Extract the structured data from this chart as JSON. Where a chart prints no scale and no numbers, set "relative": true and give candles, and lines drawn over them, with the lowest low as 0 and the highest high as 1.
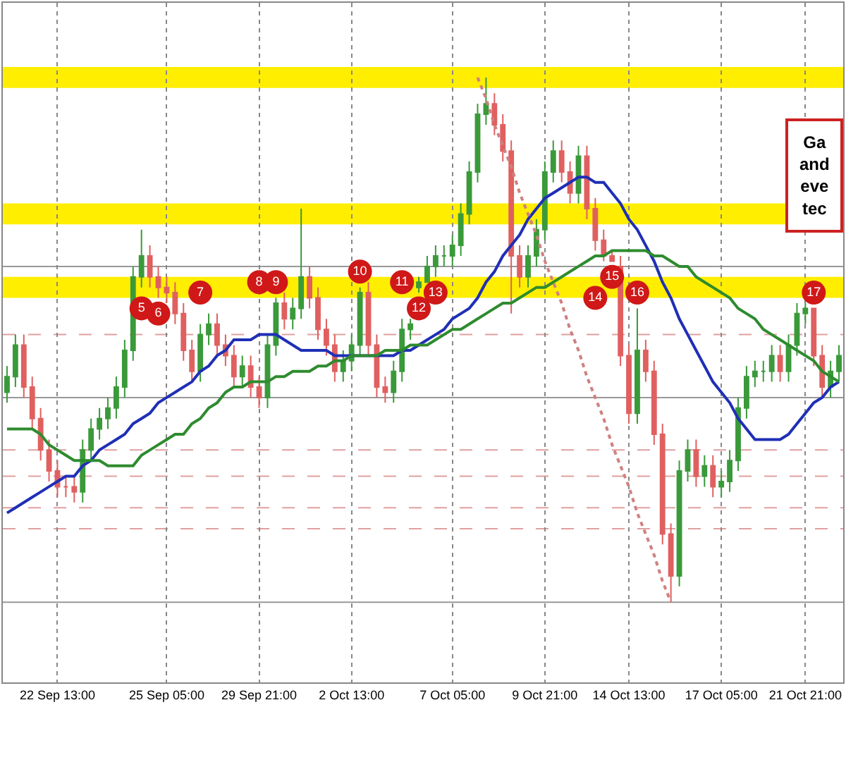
{
  "chart_data": {
    "type": "candlestick",
    "relative": true,
    "categories": [
      null,
      null,
      null,
      null,
      null,
      null,
      "22 Sep 13:00",
      null,
      null,
      null,
      null,
      null,
      null,
      null,
      null,
      null,
      null,
      null,
      null,
      "25 Sep 05:00",
      null,
      null,
      null,
      null,
      null,
      null,
      null,
      null,
      null,
      null,
      "29 Sep 21:00",
      null,
      null,
      null,
      null,
      null,
      null,
      null,
      null,
      null,
      null,
      "2 Oct 13:00",
      null,
      null,
      null,
      null,
      null,
      null,
      null,
      null,
      null,
      null,
      null,
      "7 Oct 05:00",
      null,
      null,
      null,
      null,
      null,
      null,
      null,
      null,
      null,
      null,
      "9 Oct 21:00",
      null,
      null,
      null,
      null,
      null,
      null,
      null,
      null,
      null,
      "14 Oct 13:00",
      null,
      null,
      null,
      null,
      null,
      null,
      null,
      null,
      null,
      null,
      "17 Oct 05:00",
      null,
      null,
      null,
      null,
      null,
      null,
      null,
      null,
      null,
      "21 Oct 21:00",
      null,
      null,
      null,
      null
    ],
    "ohlc": [
      [
        0.4,
        0.45,
        0.38,
        0.43
      ],
      [
        0.43,
        0.51,
        0.41,
        0.49
      ],
      [
        0.49,
        0.51,
        0.39,
        0.41
      ],
      [
        0.41,
        0.43,
        0.33,
        0.35
      ],
      [
        0.35,
        0.37,
        0.27,
        0.29
      ],
      [
        0.29,
        0.31,
        0.23,
        0.25
      ],
      [
        0.25,
        0.27,
        0.2,
        0.22
      ],
      [
        0.22,
        0.24,
        0.2,
        0.22
      ],
      [
        0.22,
        0.24,
        0.19,
        0.21
      ],
      [
        0.21,
        0.31,
        0.19,
        0.29
      ],
      [
        0.29,
        0.35,
        0.27,
        0.33
      ],
      [
        0.33,
        0.37,
        0.31,
        0.35
      ],
      [
        0.35,
        0.39,
        0.33,
        0.37
      ],
      [
        0.37,
        0.43,
        0.35,
        0.41
      ],
      [
        0.41,
        0.5,
        0.39,
        0.48
      ],
      [
        0.48,
        0.64,
        0.46,
        0.62
      ],
      [
        0.62,
        0.71,
        0.6,
        0.66
      ],
      [
        0.66,
        0.68,
        0.6,
        0.62
      ],
      [
        0.62,
        0.64,
        0.58,
        0.6
      ],
      [
        0.6,
        0.62,
        0.57,
        0.59
      ],
      [
        0.59,
        0.61,
        0.53,
        0.55
      ],
      [
        0.55,
        0.57,
        0.46,
        0.48
      ],
      [
        0.48,
        0.5,
        0.42,
        0.44
      ],
      [
        0.44,
        0.53,
        0.42,
        0.51
      ],
      [
        0.51,
        0.55,
        0.49,
        0.53
      ],
      [
        0.53,
        0.55,
        0.47,
        0.49
      ],
      [
        0.49,
        0.51,
        0.45,
        0.47
      ],
      [
        0.47,
        0.49,
        0.41,
        0.43
      ],
      [
        0.43,
        0.47,
        0.41,
        0.45
      ],
      [
        0.45,
        0.47,
        0.39,
        0.41
      ],
      [
        0.41,
        0.43,
        0.37,
        0.39
      ],
      [
        0.39,
        0.51,
        0.37,
        0.49
      ],
      [
        0.49,
        0.58,
        0.47,
        0.57
      ],
      [
        0.57,
        0.59,
        0.52,
        0.54
      ],
      [
        0.54,
        0.58,
        0.52,
        0.56
      ],
      [
        0.56,
        0.75,
        0.54,
        0.62
      ],
      [
        0.62,
        0.64,
        0.56,
        0.58
      ],
      [
        0.58,
        0.6,
        0.5,
        0.52
      ],
      [
        0.52,
        0.54,
        0.47,
        0.49
      ],
      [
        0.49,
        0.51,
        0.42,
        0.44
      ],
      [
        0.44,
        0.48,
        0.42,
        0.46
      ],
      [
        0.46,
        0.51,
        0.44,
        0.49
      ],
      [
        0.49,
        0.6,
        0.47,
        0.59
      ],
      [
        0.59,
        0.61,
        0.47,
        0.49
      ],
      [
        0.49,
        0.51,
        0.39,
        0.41
      ],
      [
        0.41,
        0.43,
        0.38,
        0.4
      ],
      [
        0.4,
        0.46,
        0.38,
        0.44
      ],
      [
        0.44,
        0.54,
        0.42,
        0.52
      ],
      [
        0.52,
        0.54,
        0.5,
        0.53
      ],
      [
        0.6,
        0.62,
        0.59,
        0.61
      ],
      [
        0.61,
        0.66,
        0.61,
        0.64
      ],
      [
        0.64,
        0.68,
        0.62,
        0.66
      ],
      [
        0.66,
        0.68,
        0.64,
        0.66
      ],
      [
        0.66,
        0.7,
        0.64,
        0.68
      ],
      [
        0.68,
        0.76,
        0.66,
        0.74
      ],
      [
        0.74,
        0.84,
        0.72,
        0.82
      ],
      [
        0.82,
        0.95,
        0.8,
        0.93
      ],
      [
        0.93,
        1.0,
        0.91,
        0.95
      ],
      [
        0.95,
        0.97,
        0.89,
        0.91
      ],
      [
        0.91,
        0.93,
        0.84,
        0.86
      ],
      [
        0.86,
        0.88,
        0.55,
        0.66
      ],
      [
        0.66,
        0.68,
        0.6,
        0.62
      ],
      [
        0.62,
        0.68,
        0.6,
        0.66
      ],
      [
        0.66,
        0.73,
        0.64,
        0.71
      ],
      [
        0.71,
        0.84,
        0.69,
        0.82
      ],
      [
        0.82,
        0.88,
        0.8,
        0.86
      ],
      [
        0.86,
        0.88,
        0.8,
        0.82
      ],
      [
        0.82,
        0.84,
        0.76,
        0.78
      ],
      [
        0.78,
        0.87,
        0.76,
        0.85
      ],
      [
        0.85,
        0.87,
        0.73,
        0.75
      ],
      [
        0.75,
        0.77,
        0.67,
        0.69
      ],
      [
        0.69,
        0.71,
        0.65,
        0.66
      ],
      [
        0.66,
        0.67,
        0.65,
        0.65
      ],
      [
        0.64,
        0.66,
        0.45,
        0.47
      ],
      [
        0.47,
        0.49,
        0.34,
        0.36
      ],
      [
        0.36,
        0.56,
        0.34,
        0.48
      ],
      [
        0.48,
        0.5,
        0.42,
        0.44
      ],
      [
        0.44,
        0.46,
        0.3,
        0.32
      ],
      [
        0.32,
        0.34,
        0.11,
        0.13
      ],
      [
        0.13,
        0.15,
        0.0,
        0.05
      ],
      [
        0.05,
        0.27,
        0.03,
        0.25
      ],
      [
        0.25,
        0.31,
        0.23,
        0.29
      ],
      [
        0.29,
        0.31,
        0.22,
        0.24
      ],
      [
        0.24,
        0.28,
        0.22,
        0.26
      ],
      [
        0.26,
        0.28,
        0.2,
        0.22
      ],
      [
        0.22,
        0.25,
        0.2,
        0.23
      ],
      [
        0.23,
        0.29,
        0.21,
        0.27
      ],
      [
        0.27,
        0.39,
        0.25,
        0.37
      ],
      [
        0.37,
        0.45,
        0.35,
        0.43
      ],
      [
        0.43,
        0.46,
        0.41,
        0.44
      ],
      [
        0.44,
        0.46,
        0.42,
        0.44
      ],
      [
        0.44,
        0.49,
        0.42,
        0.47
      ],
      [
        0.47,
        0.49,
        0.42,
        0.44
      ],
      [
        0.44,
        0.51,
        0.42,
        0.49
      ],
      [
        0.49,
        0.57,
        0.47,
        0.55
      ],
      [
        0.55,
        0.57,
        0.53,
        0.56
      ],
      [
        0.56,
        0.56,
        0.45,
        0.47
      ],
      [
        0.47,
        0.49,
        0.39,
        0.41
      ],
      [
        0.41,
        0.46,
        0.39,
        0.44
      ],
      [
        0.44,
        0.49,
        0.42,
        0.47
      ]
    ],
    "series": [
      {
        "type": "line",
        "color": "#1f2fb5",
        "values": [
          0.17,
          0.18,
          0.19,
          0.2,
          0.21,
          0.22,
          0.23,
          0.24,
          0.24,
          0.26,
          0.27,
          0.29,
          0.3,
          0.31,
          0.32,
          0.34,
          0.35,
          0.36,
          0.38,
          0.39,
          0.4,
          0.41,
          0.42,
          0.44,
          0.45,
          0.47,
          0.48,
          0.5,
          0.5,
          0.5,
          0.51,
          0.51,
          0.51,
          0.5,
          0.49,
          0.48,
          0.48,
          0.48,
          0.48,
          0.47,
          0.47,
          0.47,
          0.47,
          0.47,
          0.47,
          0.47,
          0.47,
          0.48,
          0.48,
          0.49,
          0.5,
          0.51,
          0.52,
          0.54,
          0.55,
          0.56,
          0.58,
          0.61,
          0.63,
          0.66,
          0.68,
          0.7,
          0.73,
          0.75,
          0.77,
          0.78,
          0.79,
          0.8,
          0.81,
          0.81,
          0.8,
          0.8,
          0.78,
          0.76,
          0.73,
          0.71,
          0.68,
          0.65,
          0.61,
          0.58,
          0.54,
          0.51,
          0.48,
          0.45,
          0.42,
          0.4,
          0.38,
          0.35,
          0.33,
          0.31,
          0.31,
          0.31,
          0.31,
          0.32,
          0.34,
          0.36,
          0.38,
          0.39,
          0.41,
          0.42
        ]
      },
      {
        "type": "line",
        "color": "#2e8b2e",
        "values": [
          0.33,
          0.33,
          0.33,
          0.33,
          0.32,
          0.3,
          0.29,
          0.28,
          0.27,
          0.27,
          0.27,
          0.27,
          0.26,
          0.26,
          0.26,
          0.26,
          0.28,
          0.29,
          0.3,
          0.31,
          0.32,
          0.32,
          0.34,
          0.35,
          0.37,
          0.38,
          0.4,
          0.41,
          0.41,
          0.42,
          0.42,
          0.42,
          0.43,
          0.43,
          0.44,
          0.44,
          0.44,
          0.45,
          0.45,
          0.46,
          0.46,
          0.47,
          0.47,
          0.47,
          0.47,
          0.48,
          0.48,
          0.48,
          0.49,
          0.49,
          0.49,
          0.5,
          0.51,
          0.52,
          0.52,
          0.53,
          0.54,
          0.55,
          0.56,
          0.57,
          0.57,
          0.58,
          0.59,
          0.6,
          0.6,
          0.61,
          0.62,
          0.63,
          0.64,
          0.65,
          0.66,
          0.66,
          0.67,
          0.67,
          0.67,
          0.67,
          0.67,
          0.66,
          0.66,
          0.65,
          0.64,
          0.64,
          0.62,
          0.61,
          0.6,
          0.59,
          0.58,
          0.56,
          0.55,
          0.54,
          0.52,
          0.51,
          0.5,
          0.49,
          0.48,
          0.47,
          0.46,
          0.44,
          0.43,
          0.42
        ]
      },
      {
        "type": "line",
        "color": "#d08080",
        "line_style": "dotted",
        "values": [
          null,
          null,
          null,
          null,
          null,
          null,
          null,
          null,
          null,
          null,
          null,
          null,
          null,
          null,
          null,
          null,
          null,
          null,
          null,
          null,
          null,
          null,
          null,
          null,
          null,
          null,
          null,
          null,
          null,
          null,
          null,
          null,
          null,
          null,
          null,
          null,
          null,
          null,
          null,
          null,
          null,
          null,
          null,
          null,
          null,
          null,
          null,
          null,
          null,
          null,
          null,
          null,
          null,
          null,
          null,
          null,
          1.0,
          0.96,
          0.91,
          0.87,
          0.83,
          0.78,
          0.74,
          0.7,
          0.65,
          0.61,
          0.57,
          0.52,
          0.48,
          0.43,
          0.39,
          0.35,
          0.3,
          0.26,
          0.22,
          0.17,
          0.13,
          0.09,
          0.04,
          0.0,
          null,
          null,
          null,
          null,
          null,
          null,
          null,
          null,
          null,
          null,
          null,
          null,
          null,
          null,
          null,
          null,
          null,
          null,
          null,
          null
        ]
      },
      {
        "type": "scatter",
        "color": "#d01818",
        "marker": "circle",
        "values": [
          null,
          null,
          null,
          null,
          null,
          null,
          null,
          null,
          null,
          null,
          null,
          null,
          null,
          null,
          null,
          null,
          0.56,
          null,
          0.55,
          null,
          null,
          null,
          null,
          0.59,
          null,
          null,
          null,
          null,
          null,
          null,
          0.61,
          null,
          0.61,
          null,
          null,
          null,
          null,
          null,
          null,
          null,
          null,
          null,
          0.63,
          null,
          null,
          null,
          null,
          0.61,
          null,
          0.56,
          null,
          0.59,
          null,
          null,
          null,
          null,
          null,
          null,
          null,
          null,
          null,
          null,
          null,
          null,
          null,
          null,
          null,
          null,
          null,
          null,
          0.58,
          null,
          0.62,
          null,
          null,
          0.59,
          null,
          null,
          null,
          null,
          null,
          null,
          null,
          null,
          null,
          null,
          null,
          null,
          null,
          null,
          null,
          null,
          null,
          null,
          null,
          null,
          0.59,
          null,
          null,
          null
        ]
      }
    ],
    "bands": [
      {
        "axis": "y",
        "from": 0.98,
        "to": 1.02,
        "color": "#ffee00"
      },
      {
        "axis": "y",
        "from": 0.72,
        "to": 0.76,
        "color": "#ffee00"
      },
      {
        "axis": "y",
        "from": 0.58,
        "to": 0.62,
        "color": "#ffee00"
      }
    ],
    "ref_lines": [
      {
        "axis": "y",
        "value": 0.51,
        "color": "#e0a0a0",
        "line_style": "dashed"
      },
      {
        "axis": "y",
        "value": 0.29,
        "color": "#e0a0a0",
        "line_style": "dashed"
      },
      {
        "axis": "y",
        "value": 0.24,
        "color": "#e0a0a0",
        "line_style": "dashed"
      },
      {
        "axis": "y",
        "value": 0.18,
        "color": "#e0a0a0",
        "line_style": "dashed"
      },
      {
        "axis": "y",
        "value": 0.14,
        "color": "#e0a0a0",
        "line_style": "dashed"
      },
      {
        "axis": "y",
        "value": 0.64,
        "color": "#999999",
        "line_style": "solid"
      },
      {
        "axis": "y",
        "value": 0.39,
        "color": "#999999",
        "line_style": "solid"
      },
      {
        "axis": "y",
        "value": 0.0,
        "color": "#999999",
        "line_style": "solid"
      }
    ],
    "annotations": [
      "Ga\nand\neve\ntec",
      {
        "text": "5",
        "y": 0.56
      },
      {
        "text": "6",
        "y": 0.55
      },
      {
        "text": "7",
        "y": 0.59
      },
      {
        "text": "8",
        "y": 0.61
      },
      {
        "text": "9",
        "y": 0.61
      },
      {
        "text": "10",
        "y": 0.63
      },
      {
        "text": "11",
        "y": 0.61
      },
      {
        "text": "12",
        "y": 0.56
      },
      {
        "text": "13",
        "y": 0.59
      },
      {
        "text": "14",
        "y": 0.58
      },
      {
        "text": "15",
        "y": 0.62
      },
      {
        "text": "16",
        "y": 0.59
      },
      {
        "text": "17",
        "y": 0.59
      }
    ],
    "grid": "x"
  }
}
